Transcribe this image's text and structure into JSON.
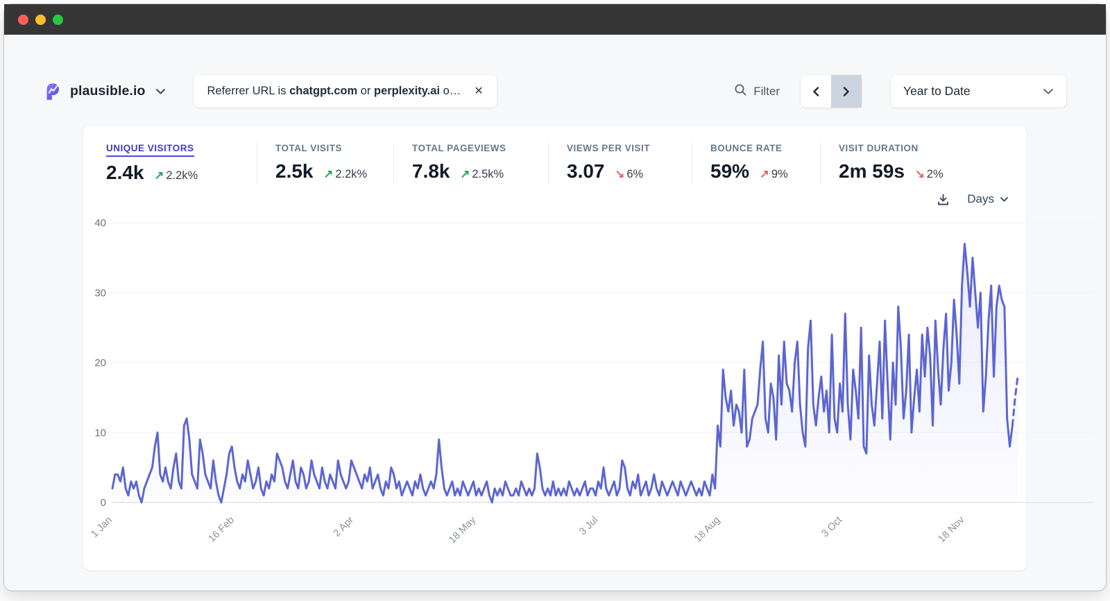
{
  "window": {
    "titlebar_color": "#363636",
    "traffic_lights": {
      "close": "#ff5f57",
      "minimize": "#febc2e",
      "zoom": "#28c840"
    }
  },
  "header": {
    "site_name": "plausible.io",
    "brand_color": "#5850ec",
    "filter_pill": {
      "segments": [
        {
          "text": "Referrer URL is ",
          "bold": false
        },
        {
          "text": "chatgpt.com",
          "bold": true
        },
        {
          "text": " or ",
          "bold": false
        },
        {
          "text": "perplexity.ai",
          "bold": true
        },
        {
          "text": " o…",
          "bold": false
        }
      ],
      "close_glyph": "✕"
    },
    "filter_button_label": "Filter",
    "date_range_label": "Year to Date"
  },
  "stats": {
    "items": [
      {
        "label": "UNIQUE VISITORS",
        "value": "2.4k",
        "change": "2.2k%",
        "arrow_glyph": "↗",
        "arrow_color": "#23a455",
        "active": true
      },
      {
        "label": "TOTAL VISITS",
        "value": "2.5k",
        "change": "2.2k%",
        "arrow_glyph": "↗",
        "arrow_color": "#23a455",
        "active": false
      },
      {
        "label": "TOTAL PAGEVIEWS",
        "value": "7.8k",
        "change": "2.5k%",
        "arrow_glyph": "↗",
        "arrow_color": "#23a455",
        "active": false
      },
      {
        "label": "VIEWS PER VISIT",
        "value": "3.07",
        "change": "6%",
        "arrow_glyph": "↘",
        "arrow_color": "#ea5e5e",
        "active": false
      },
      {
        "label": "BOUNCE RATE",
        "value": "59%",
        "change": "9%",
        "arrow_glyph": "↗",
        "arrow_color": "#ea5e5e",
        "active": false
      },
      {
        "label": "VISIT DURATION",
        "value": "2m 59s",
        "change": "2%",
        "arrow_glyph": "↘",
        "arrow_color": "#ea5e5e",
        "active": false
      }
    ]
  },
  "chart_controls": {
    "interval_label": "Days"
  },
  "chart_data": {
    "type": "line",
    "metric": "Unique visitors per day",
    "ylim": [
      0,
      40
    ],
    "yticks": [
      0,
      10,
      20,
      30,
      40
    ],
    "grid": true,
    "line_color": "#5c66d1",
    "area_color_top": "rgba(99,102,241,0.13)",
    "area_color_bottom": "rgba(99,102,241,0.02)",
    "grid_color": "#f1f3f5",
    "axis_line_color": "#e2e6ea",
    "ylabel_color": "#6b7280",
    "xlabel_color": "#8b9198",
    "x_ticks": [
      {
        "label": "1 Jan",
        "index": 0
      },
      {
        "label": "16 Feb",
        "index": 46
      },
      {
        "label": "2 Apr",
        "index": 91
      },
      {
        "label": "18 May",
        "index": 137
      },
      {
        "label": "3 Jul",
        "index": 183
      },
      {
        "label": "18 Aug",
        "index": 229
      },
      {
        "label": "3 Oct",
        "index": 275
      },
      {
        "label": "18 Nov",
        "index": 321
      }
    ],
    "dashed_from_index": 339,
    "values": [
      2,
      4,
      4,
      3,
      5,
      2,
      1,
      3,
      2,
      3,
      1,
      0,
      2,
      3,
      4,
      5,
      8,
      10,
      4,
      3,
      5,
      3,
      2,
      5,
      7,
      3,
      2,
      11,
      12,
      9,
      4,
      3,
      2,
      9,
      7,
      4,
      3,
      2,
      6,
      3,
      1,
      0,
      2,
      4,
      7,
      8,
      5,
      3,
      2,
      4,
      3,
      6,
      4,
      2,
      3,
      5,
      2,
      1,
      3,
      2,
      4,
      3,
      7,
      6,
      5,
      3,
      2,
      4,
      6,
      3,
      2,
      5,
      4,
      2,
      3,
      6,
      4,
      3,
      2,
      5,
      3,
      2,
      4,
      3,
      2,
      6,
      4,
      3,
      2,
      3,
      6,
      5,
      4,
      3,
      2,
      4,
      3,
      5,
      2,
      3,
      4,
      2,
      1,
      3,
      2,
      5,
      4,
      2,
      3,
      1,
      2,
      3,
      2,
      1,
      3,
      2,
      4,
      2,
      1,
      2,
      3,
      2,
      4,
      9,
      5,
      2,
      1,
      2,
      3,
      1,
      2,
      1,
      3,
      2,
      1,
      2,
      3,
      1,
      2,
      1,
      2,
      3,
      1,
      0,
      2,
      1,
      2,
      1,
      3,
      2,
      1,
      1,
      2,
      1,
      3,
      2,
      1,
      2,
      1,
      2,
      7,
      5,
      2,
      1,
      2,
      1,
      3,
      1,
      2,
      1,
      2,
      1,
      3,
      2,
      1,
      2,
      1,
      2,
      3,
      1,
      2,
      2,
      1,
      3,
      2,
      5,
      2,
      1,
      2,
      3,
      1,
      2,
      6,
      5,
      2,
      1,
      3,
      2,
      4,
      1,
      2,
      3,
      1,
      2,
      4,
      2,
      1,
      3,
      2,
      1,
      2,
      3,
      2,
      1,
      3,
      2,
      1,
      2,
      3,
      2,
      1,
      2,
      1,
      3,
      2,
      1,
      4,
      2,
      11,
      8,
      19,
      15,
      13,
      16,
      11,
      14,
      13,
      10,
      19,
      8,
      9,
      12,
      13,
      14,
      19,
      23,
      12,
      10,
      17,
      15,
      9,
      21,
      14,
      23,
      17,
      16,
      13,
      20,
      23,
      14,
      10,
      8,
      22,
      26,
      14,
      11,
      15,
      18,
      13,
      16,
      10,
      24,
      12,
      10,
      17,
      13,
      27,
      14,
      9,
      19,
      16,
      12,
      25,
      8,
      7,
      21,
      14,
      11,
      17,
      23,
      12,
      26,
      17,
      9,
      20,
      14,
      28,
      22,
      12,
      16,
      24,
      10,
      15,
      19,
      13,
      24,
      18,
      25,
      21,
      11,
      26,
      19,
      14,
      22,
      27,
      16,
      20,
      29,
      24,
      17,
      31,
      37,
      33,
      28,
      35,
      30,
      25,
      30,
      13,
      18,
      26,
      31,
      18,
      28,
      31,
      29,
      28,
      12,
      8,
      11,
      15,
      18
    ]
  }
}
